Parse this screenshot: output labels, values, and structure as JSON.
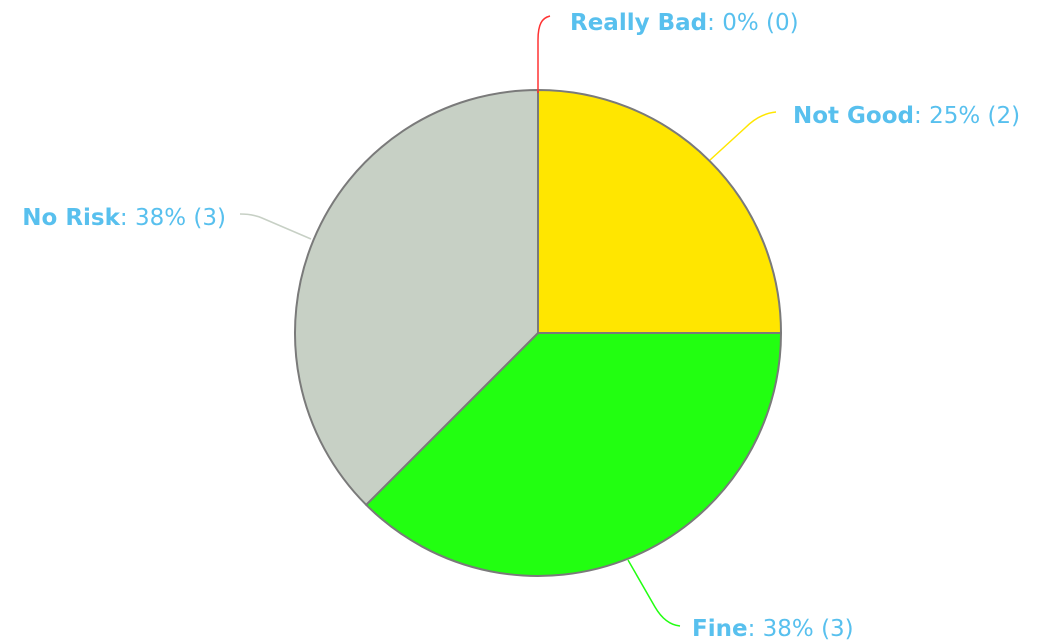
{
  "chart_data": {
    "type": "pie",
    "start_angle_deg": 0,
    "direction": "clockwise",
    "label_color": "#58c0ee",
    "slices": [
      {
        "name": "Really Bad",
        "value": 0,
        "percent_label": "0%",
        "count_label": "(0)",
        "color": "#ff3333",
        "leader_color": "#ff3333"
      },
      {
        "name": "Not Good",
        "value": 2,
        "percent_label": "25%",
        "count_label": "(2)",
        "color": "#ffe600",
        "leader_color": "#ffe600"
      },
      {
        "name": "Fine",
        "value": 3,
        "percent_label": "38%",
        "count_label": "(3)",
        "color": "#22ff11",
        "leader_color": "#22ff11"
      },
      {
        "name": "No Risk",
        "value": 3,
        "percent_label": "38%",
        "count_label": "(3)",
        "color": "#c7d0c5",
        "leader_color": "#c7d0c5"
      }
    ]
  }
}
